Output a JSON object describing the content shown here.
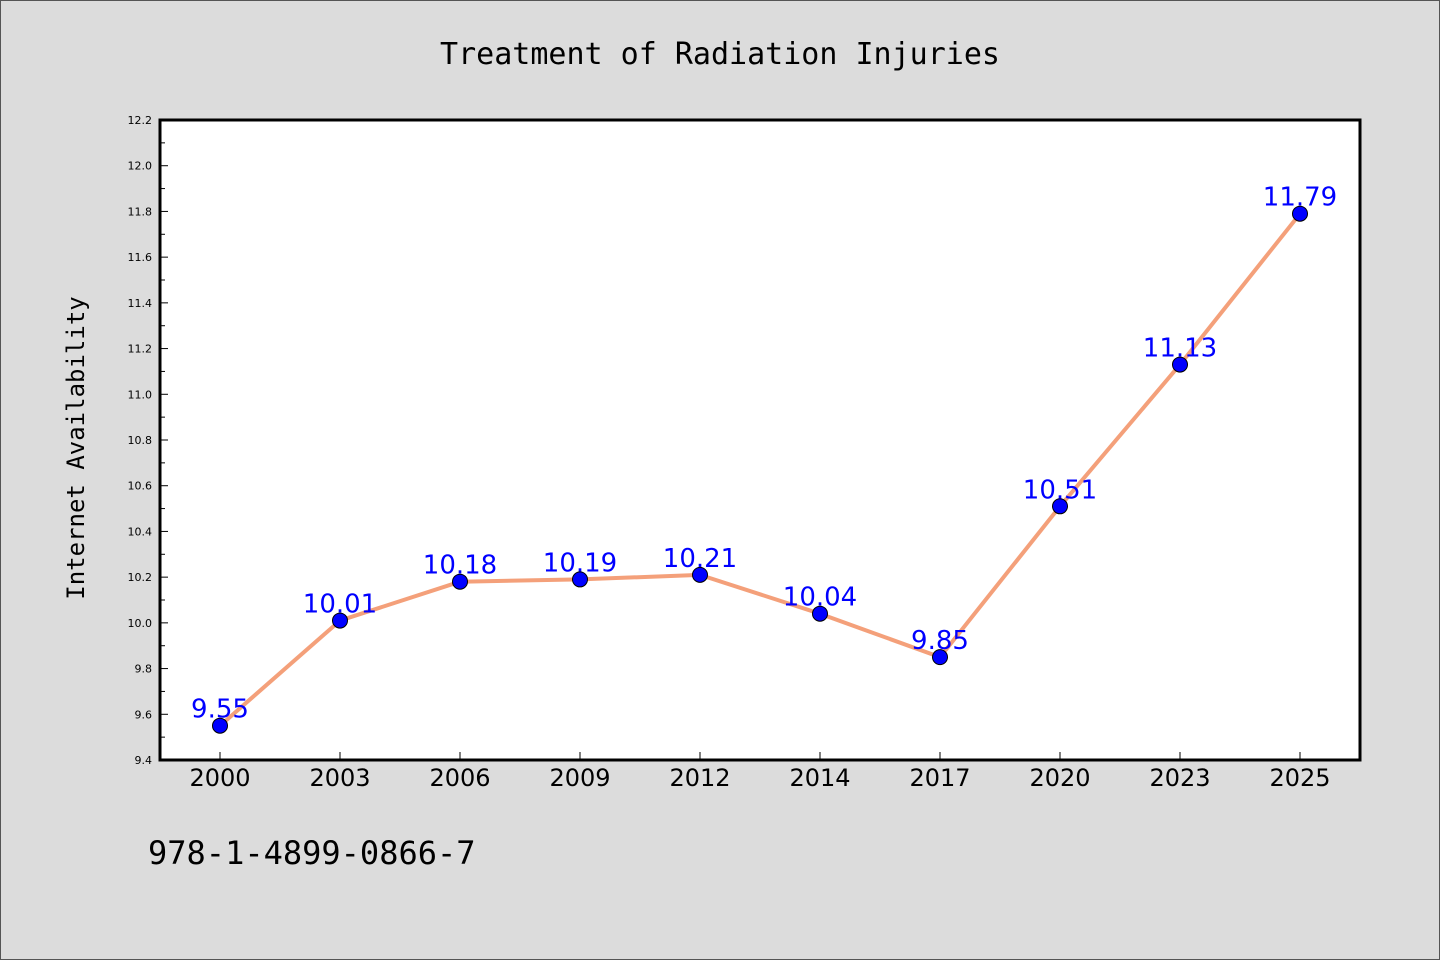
{
  "chart_data": {
    "type": "line",
    "title": "Treatment of Radiation Injuries",
    "xlabel": "",
    "ylabel": "Internet Availability",
    "categories": [
      "2000",
      "2003",
      "2006",
      "2009",
      "2012",
      "2014",
      "2017",
      "2020",
      "2023",
      "2025"
    ],
    "series": [
      {
        "values": [
          9.55,
          10.01,
          10.18,
          10.19,
          10.21,
          10.04,
          9.85,
          10.51,
          11.13,
          11.79
        ],
        "data_labels": [
          "9.55",
          "10.01",
          "10.18",
          "10.19",
          "10.21",
          "10.04",
          "9.85",
          "10.51",
          "11.13",
          "11.79"
        ],
        "line_color": "#f4a07a",
        "marker_color": "#0000ff"
      }
    ],
    "ylim": [
      9.4,
      12.2
    ],
    "yticks": [
      "9.4",
      "9.6",
      "9.8",
      "10.0",
      "10.2",
      "10.4",
      "10.6",
      "10.8",
      "11.0",
      "11.2",
      "11.4",
      "11.6",
      "11.8",
      "12.0",
      "12.2"
    ],
    "grid": false,
    "legend": "none"
  },
  "footer": {
    "isbn": "978-1-4899-0866-7"
  },
  "colors": {
    "background": "#dcdcdc",
    "plot_background": "#ffffff",
    "line": "#f4a07a",
    "marker": "#0000ff",
    "data_label": "#0000ff"
  }
}
